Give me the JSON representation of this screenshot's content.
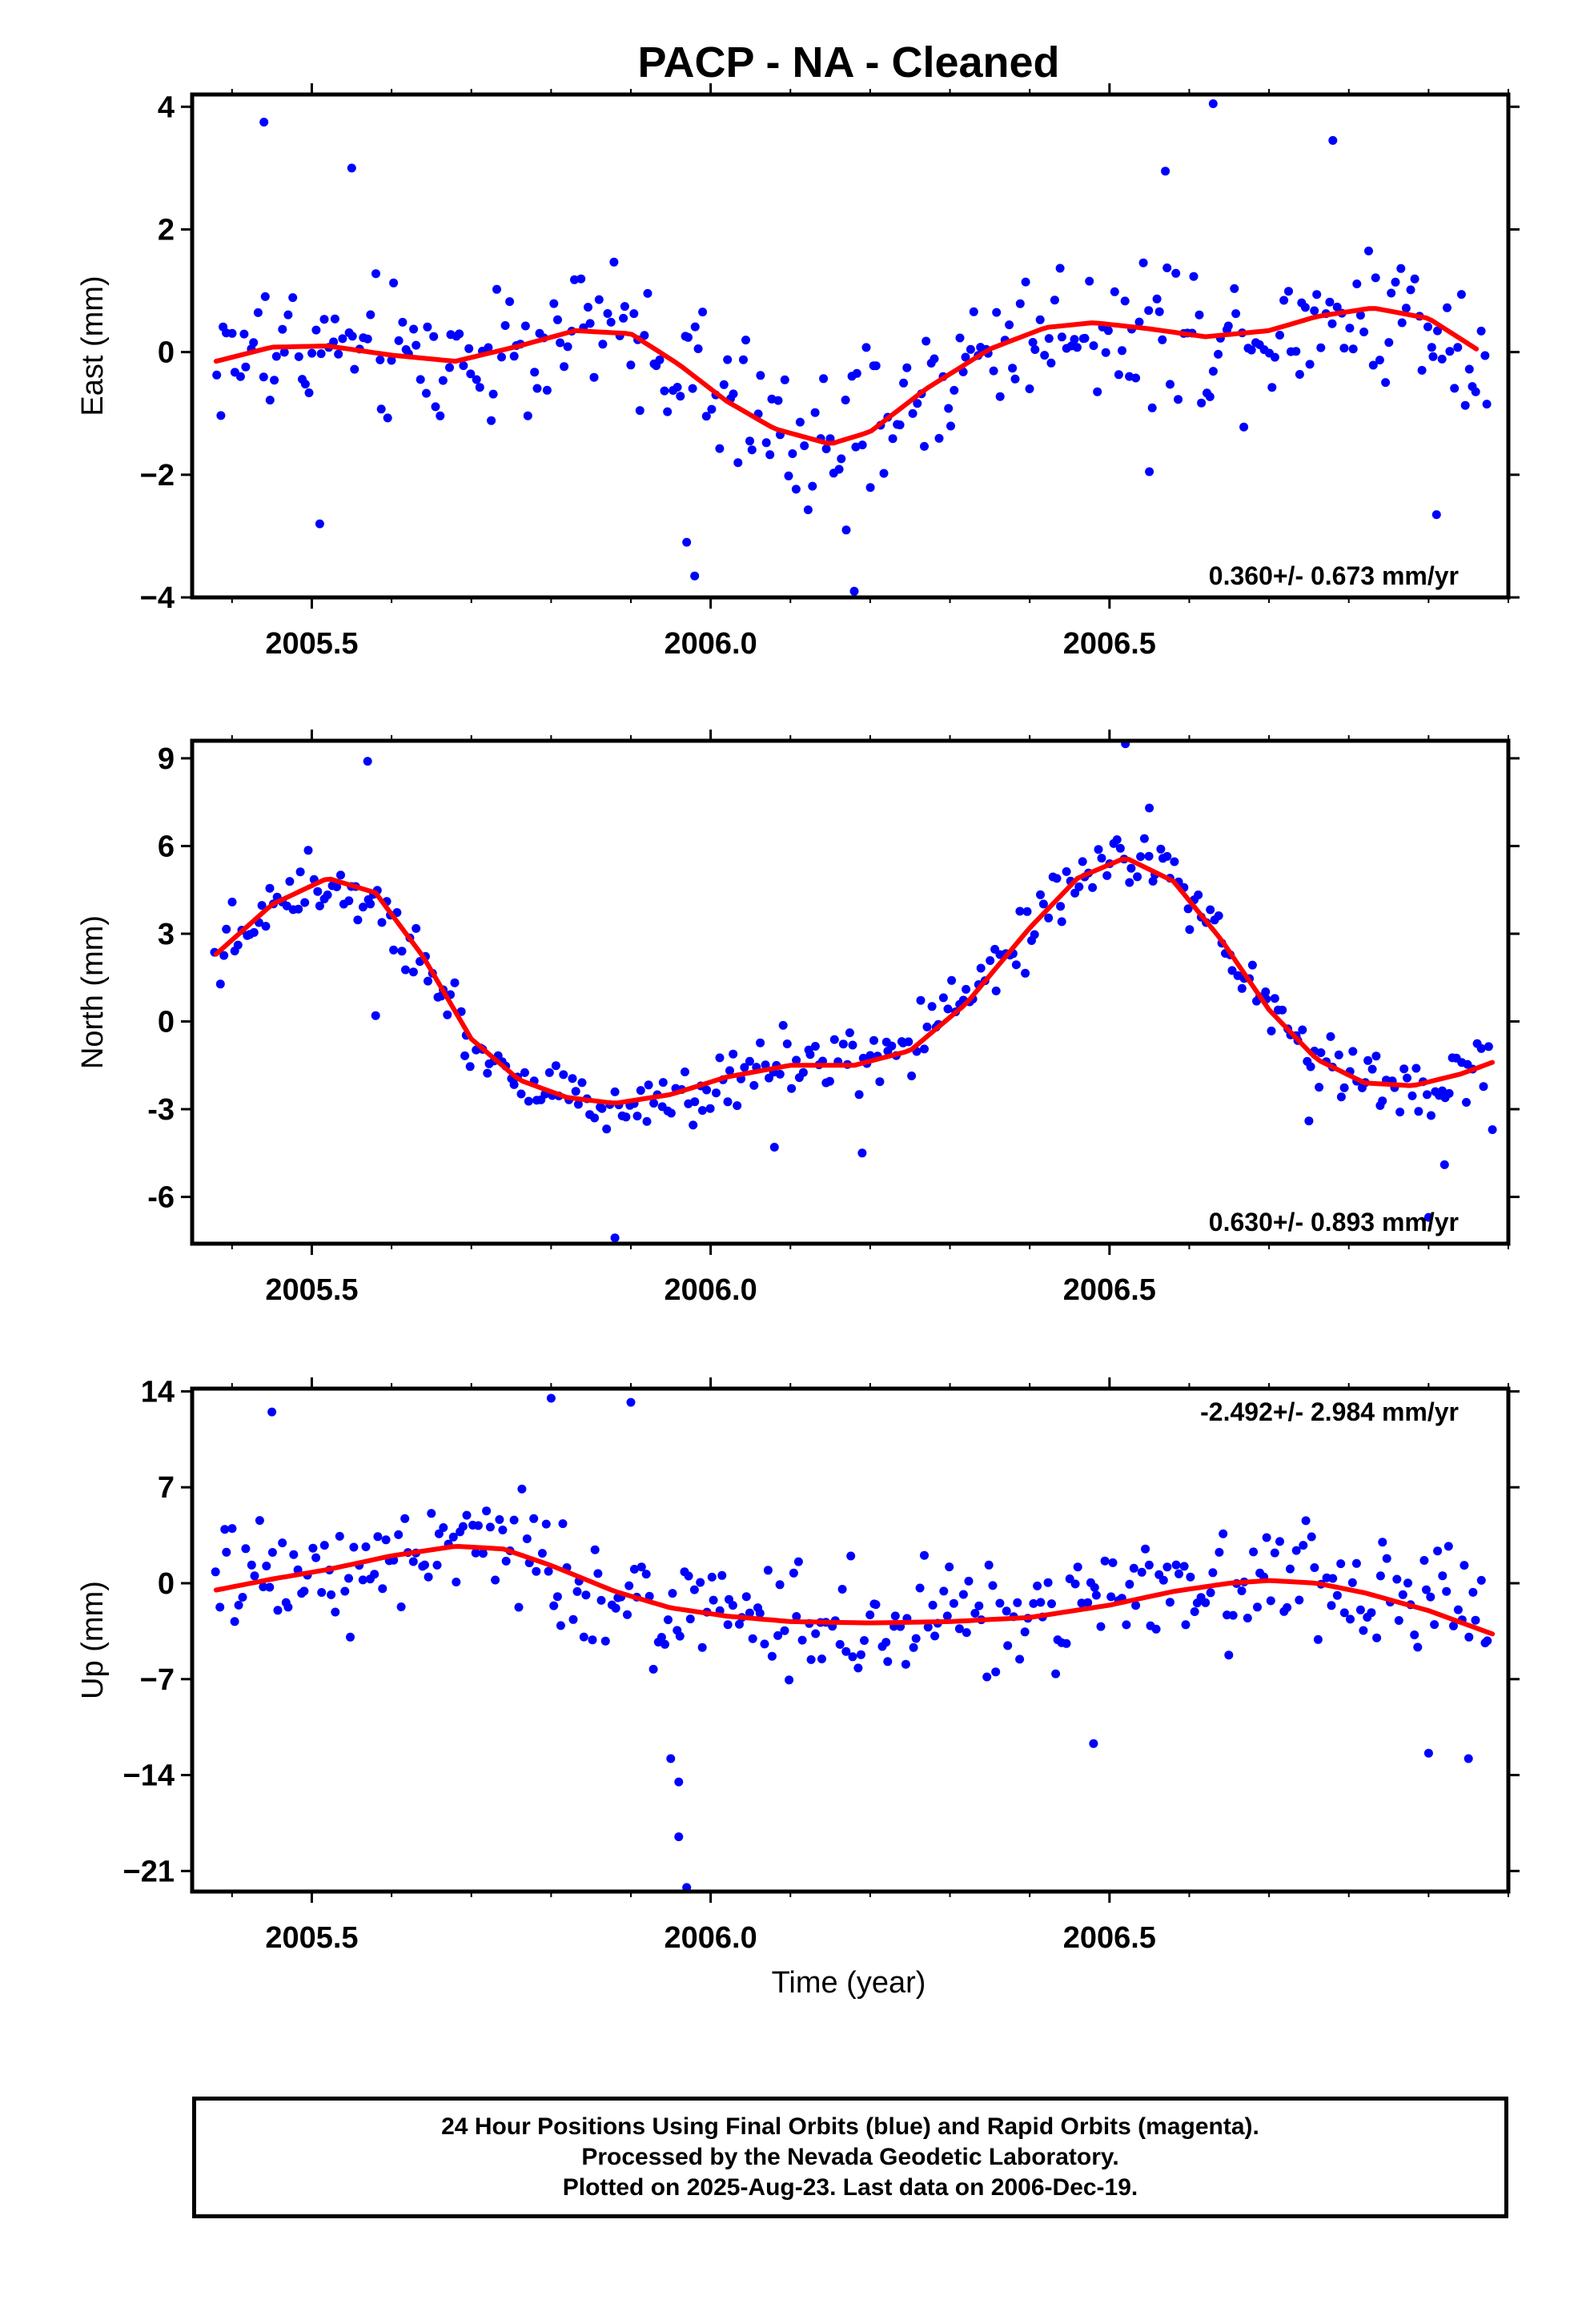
{
  "title": "PACP  - NA - Cleaned",
  "xlabel": "Time (year)",
  "footer": {
    "line1": "24 Hour Positions Using Final Orbits (blue) and Rapid Orbits (magenta).",
    "line2": "Processed by the Nevada Geodetic Laboratory.",
    "line3": "Plotted on 2025-Aug-23. Last data on 2006-Dec-19."
  },
  "colors": {
    "points": "#0000ff",
    "fit": "#ff0000",
    "frame": "#000000"
  },
  "chart_data": [
    {
      "type": "scatter",
      "ylabel": "East (mm)",
      "xlim": [
        2005.35,
        2007.0
      ],
      "ylim": [
        -4,
        4.2
      ],
      "xticks": [
        2005.5,
        2006.0,
        2006.5
      ],
      "xtick_labels": [
        "2005.5",
        "2006.0",
        "2006.5"
      ],
      "yticks": [
        -4,
        -2,
        0,
        2,
        4
      ],
      "ytick_labels": [
        "−4",
        "−2",
        "0",
        "2",
        "4"
      ],
      "rate_label": "0.360+/- 0.673 mm/yr",
      "rate_label_position": "bottom-right",
      "series": [
        {
          "kind": "points",
          "amp": 1.2,
          "noise": 1.15,
          "outliers": [
            [
              2005.44,
              3.75
            ],
            [
              2005.51,
              -2.8
            ],
            [
              2005.55,
              3.0
            ],
            [
              2005.97,
              -3.1
            ],
            [
              2005.98,
              -3.65
            ],
            [
              2006.17,
              -2.9
            ],
            [
              2006.18,
              -3.9
            ],
            [
              2006.55,
              -1.95
            ],
            [
              2006.57,
              2.95
            ],
            [
              2006.63,
              4.05
            ],
            [
              2006.78,
              3.45
            ],
            [
              2006.91,
              -2.65
            ]
          ]
        },
        {
          "kind": "fit",
          "x": [
            2005.38,
            2005.45,
            2005.52,
            2005.6,
            2005.68,
            2005.76,
            2005.83,
            2005.9,
            2005.96,
            2006.02,
            2006.08,
            2006.15,
            2006.2,
            2006.27,
            2006.35,
            2006.42,
            2006.48,
            2006.55,
            2006.62,
            2006.7,
            2006.76,
            2006.83,
            2006.9,
            2006.96
          ],
          "y": [
            -0.15,
            0.08,
            0.1,
            -0.05,
            -0.15,
            0.1,
            0.35,
            0.3,
            -0.2,
            -0.8,
            -1.25,
            -1.5,
            -1.3,
            -0.6,
            0.05,
            0.4,
            0.48,
            0.38,
            0.25,
            0.35,
            0.58,
            0.72,
            0.55,
            0.05
          ]
        }
      ]
    },
    {
      "type": "scatter",
      "ylabel": "North (mm)",
      "xlim": [
        2005.35,
        2007.0
      ],
      "ylim": [
        -7.6,
        9.6
      ],
      "xticks": [
        2005.5,
        2006.0,
        2006.5
      ],
      "xtick_labels": [
        "2005.5",
        "2006.0",
        "2006.5"
      ],
      "yticks": [
        -6,
        -3,
        0,
        3,
        6,
        9
      ],
      "ytick_labels": [
        "-6",
        "-3",
        "0",
        "3",
        "6",
        "9"
      ],
      "rate_label": "0.630+/- 0.893 mm/yr",
      "rate_label_position": "bottom-right",
      "series": [
        {
          "kind": "points",
          "amp": 1.4,
          "noise": 1.1,
          "outliers": [
            [
              2005.57,
              8.9
            ],
            [
              2005.58,
              0.2
            ],
            [
              2005.88,
              -7.4
            ],
            [
              2006.08,
              -4.3
            ],
            [
              2006.19,
              -4.5
            ],
            [
              2006.52,
              9.5
            ],
            [
              2006.55,
              7.3
            ],
            [
              2006.75,
              -3.4
            ],
            [
              2006.9,
              -6.7
            ],
            [
              2006.92,
              -4.9
            ],
            [
              2006.98,
              -3.7
            ]
          ]
        },
        {
          "kind": "fit",
          "x": [
            2005.38,
            2005.45,
            2005.52,
            2005.58,
            2005.64,
            2005.7,
            2005.76,
            2005.82,
            2005.88,
            2005.95,
            2006.02,
            2006.1,
            2006.18,
            2006.25,
            2006.32,
            2006.4,
            2006.46,
            2006.52,
            2006.58,
            2006.64,
            2006.7,
            2006.76,
            2006.82,
            2006.88,
            2006.94,
            2006.98
          ],
          "y": [
            2.3,
            4.0,
            4.9,
            4.4,
            2.2,
            -0.6,
            -2.0,
            -2.6,
            -2.8,
            -2.5,
            -1.9,
            -1.5,
            -1.5,
            -1.0,
            0.6,
            3.2,
            4.9,
            5.6,
            4.8,
            2.8,
            0.4,
            -1.3,
            -2.1,
            -2.2,
            -1.8,
            -1.4
          ]
        }
      ]
    },
    {
      "type": "scatter",
      "ylabel": "Up (mm)",
      "xlim": [
        2005.35,
        2007.0
      ],
      "ylim": [
        -22.5,
        14.2
      ],
      "xticks": [
        2005.5,
        2006.0,
        2006.5
      ],
      "xtick_labels": [
        "2005.5",
        "2006.0",
        "2006.5"
      ],
      "yticks": [
        -21,
        -14,
        -7,
        0,
        7,
        14
      ],
      "ytick_labels": [
        "−21",
        "−14",
        "−7",
        "0",
        "7",
        "14"
      ],
      "rate_label": "-2.492+/- 2.984 mm/yr",
      "rate_label_position": "top-right",
      "series": [
        {
          "kind": "points",
          "amp": 3.0,
          "noise": 4.2,
          "outliers": [
            [
              2005.45,
              12.5
            ],
            [
              2005.8,
              13.5
            ],
            [
              2005.9,
              13.2
            ],
            [
              2005.95,
              -12.8
            ],
            [
              2005.96,
              -14.5
            ],
            [
              2005.96,
              -18.5
            ],
            [
              2005.97,
              -22.2
            ],
            [
              2006.48,
              -11.7
            ],
            [
              2006.9,
              -12.4
            ],
            [
              2006.95,
              -12.8
            ]
          ]
        },
        {
          "kind": "fit",
          "x": [
            2005.38,
            2005.45,
            2005.52,
            2005.6,
            2005.68,
            2005.74,
            2005.8,
            2005.88,
            2005.95,
            2006.02,
            2006.1,
            2006.2,
            2006.3,
            2006.4,
            2006.5,
            2006.58,
            2006.65,
            2006.7,
            2006.76,
            2006.82,
            2006.9,
            2006.98
          ],
          "y": [
            -0.5,
            0.3,
            1.0,
            2.0,
            2.7,
            2.5,
            1.3,
            -0.6,
            -1.8,
            -2.4,
            -2.8,
            -2.9,
            -2.8,
            -2.5,
            -1.6,
            -0.6,
            0.0,
            0.2,
            0.0,
            -0.7,
            -2.0,
            -3.7
          ]
        }
      ]
    }
  ]
}
